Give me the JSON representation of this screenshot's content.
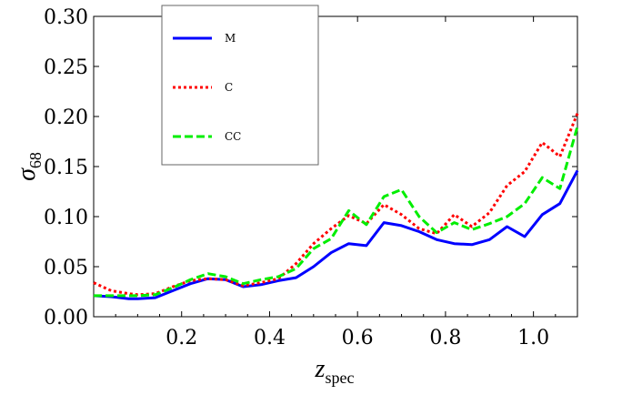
{
  "chart_data": {
    "type": "line",
    "ylabel": {
      "main": "σ",
      "sub": "68"
    },
    "xlabel": {
      "main": "z",
      "sub": "spec"
    },
    "xlim": [
      0.0,
      1.1
    ],
    "ylim": [
      0.0,
      0.3
    ],
    "x_ticks": [
      "0.2",
      "0.4",
      "0.6",
      "0.8",
      "1.0"
    ],
    "y_ticks": [
      "0.00",
      "0.05",
      "0.10",
      "0.15",
      "0.20",
      "0.25",
      "0.30"
    ],
    "legend_position": "top-left",
    "grid": false,
    "x": [
      0.0,
      0.04,
      0.08,
      0.1,
      0.14,
      0.18,
      0.22,
      0.26,
      0.3,
      0.34,
      0.38,
      0.42,
      0.46,
      0.5,
      0.54,
      0.58,
      0.62,
      0.66,
      0.7,
      0.74,
      0.78,
      0.82,
      0.86,
      0.9,
      0.94,
      0.98,
      1.02,
      1.06,
      1.1
    ],
    "series": [
      {
        "name": "M",
        "color": "#0000ff",
        "dash": "solid",
        "values": [
          0.021,
          0.02,
          0.018,
          0.018,
          0.019,
          0.026,
          0.033,
          0.038,
          0.037,
          0.03,
          0.032,
          0.036,
          0.039,
          0.05,
          0.064,
          0.073,
          0.071,
          0.094,
          0.091,
          0.085,
          0.077,
          0.073,
          0.072,
          0.077,
          0.09,
          0.08,
          0.102,
          0.113,
          0.146
        ]
      },
      {
        "name": "C",
        "color": "#ff0000",
        "dash": "dotted",
        "values": [
          0.034,
          0.026,
          0.023,
          0.022,
          0.023,
          0.03,
          0.036,
          0.038,
          0.037,
          0.031,
          0.034,
          0.038,
          0.053,
          0.073,
          0.088,
          0.101,
          0.093,
          0.112,
          0.102,
          0.088,
          0.083,
          0.102,
          0.09,
          0.104,
          0.131,
          0.145,
          0.174,
          0.16,
          0.203
        ]
      },
      {
        "name": "CC",
        "color": "#00ee00",
        "dash": "dashed",
        "values": [
          0.021,
          0.021,
          0.021,
          0.021,
          0.022,
          0.029,
          0.037,
          0.043,
          0.04,
          0.033,
          0.037,
          0.04,
          0.048,
          0.068,
          0.078,
          0.106,
          0.092,
          0.12,
          0.127,
          0.1,
          0.084,
          0.094,
          0.087,
          0.093,
          0.1,
          0.113,
          0.139,
          0.128,
          0.19
        ]
      }
    ]
  }
}
